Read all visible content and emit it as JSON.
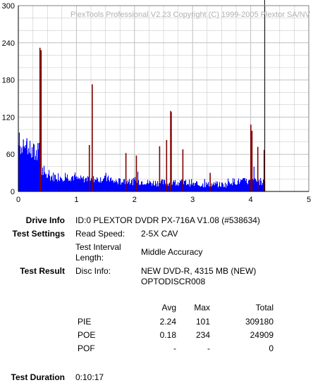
{
  "chart_data": {
    "type": "bar",
    "title": "PlexTools Professional V2.23 Copyright (C) 1999-2005 Plextor SA/NV",
    "xlabel": "",
    "ylabel": "",
    "xlim": [
      0,
      5
    ],
    "ylim": [
      0,
      300
    ],
    "x_ticks": [
      "0",
      "1",
      "2",
      "3",
      "4",
      "5"
    ],
    "y_ticks": [
      "0",
      "60",
      "120",
      "180",
      "240",
      "300"
    ],
    "grid": true,
    "end_marker_x": 4.24,
    "colors": {
      "pie": "#0000ff",
      "poe": "#800000",
      "grid": "#c0c0c0",
      "end": "#000000"
    },
    "series": [
      {
        "name": "PIE",
        "segments": [
          {
            "x0": 0.0,
            "x1": 0.05,
            "min": 58,
            "max": 92
          },
          {
            "x0": 0.05,
            "x1": 0.22,
            "min": 55,
            "max": 82
          },
          {
            "x0": 0.22,
            "x1": 0.38,
            "min": 42,
            "max": 80
          },
          {
            "x0": 0.38,
            "x1": 0.45,
            "min": 20,
            "max": 45
          },
          {
            "x0": 0.45,
            "x1": 1.0,
            "min": 16,
            "max": 32
          },
          {
            "x0": 1.0,
            "x1": 1.6,
            "min": 14,
            "max": 26
          },
          {
            "x0": 1.6,
            "x1": 2.2,
            "min": 10,
            "max": 22
          },
          {
            "x0": 2.2,
            "x1": 3.0,
            "min": 8,
            "max": 20
          },
          {
            "x0": 3.0,
            "x1": 3.6,
            "min": 6,
            "max": 16
          },
          {
            "x0": 3.6,
            "x1": 4.24,
            "min": 10,
            "max": 22
          }
        ],
        "peaks": [
          {
            "x": 0.01,
            "y": 95
          },
          {
            "x": 0.08,
            "y": 84
          },
          {
            "x": 0.14,
            "y": 86
          },
          {
            "x": 0.33,
            "y": 78
          },
          {
            "x": 1.5,
            "y": 30
          },
          {
            "x": 2.05,
            "y": 32
          },
          {
            "x": 2.62,
            "y": 28
          },
          {
            "x": 3.2,
            "y": 20
          },
          {
            "x": 4.05,
            "y": 40
          }
        ]
      },
      {
        "name": "POE",
        "points": [
          {
            "x": 0.37,
            "y": 232
          },
          {
            "x": 0.39,
            "y": 228
          },
          {
            "x": 1.22,
            "y": 75
          },
          {
            "x": 1.27,
            "y": 173
          },
          {
            "x": 1.85,
            "y": 62
          },
          {
            "x": 2.03,
            "y": 58
          },
          {
            "x": 2.43,
            "y": 73
          },
          {
            "x": 2.55,
            "y": 83
          },
          {
            "x": 2.62,
            "y": 130
          },
          {
            "x": 2.63,
            "y": 128
          },
          {
            "x": 2.83,
            "y": 68
          },
          {
            "x": 3.3,
            "y": 30
          },
          {
            "x": 4.0,
            "y": 108
          },
          {
            "x": 4.02,
            "y": 98
          },
          {
            "x": 4.12,
            "y": 72
          },
          {
            "x": 4.23,
            "y": 67
          }
        ]
      }
    ]
  },
  "info": {
    "drive_info_label": "Drive Info",
    "drive_info_value": "ID:0 PLEXTOR DVDR PX-716A V1.08 (#538634)",
    "test_settings_label": "Test Settings",
    "read_speed_label": "Read Speed:",
    "read_speed_value": "2-5X CAV",
    "interval_label_1": "Test Interval",
    "interval_label_2": "Length:",
    "interval_value": "Middle Accuracy",
    "test_result_label": "Test Result",
    "disc_info_label": "Disc Info:",
    "disc_info_line1": "NEW DVD-R, 4315 MB (NEW)",
    "disc_info_line2": "OPTODISCR008",
    "test_duration_label": "Test Duration",
    "test_duration_value": "0:10:17"
  },
  "stats": {
    "headers": {
      "avg": "Avg",
      "max": "Max",
      "total": "Total"
    },
    "rows": [
      {
        "name": "PIE",
        "avg": "2.24",
        "max": "101",
        "total": "309180"
      },
      {
        "name": "POE",
        "avg": "0.18",
        "max": "234",
        "total": "24909"
      },
      {
        "name": "POF",
        "avg": "-",
        "max": "-",
        "total": "0"
      }
    ]
  }
}
